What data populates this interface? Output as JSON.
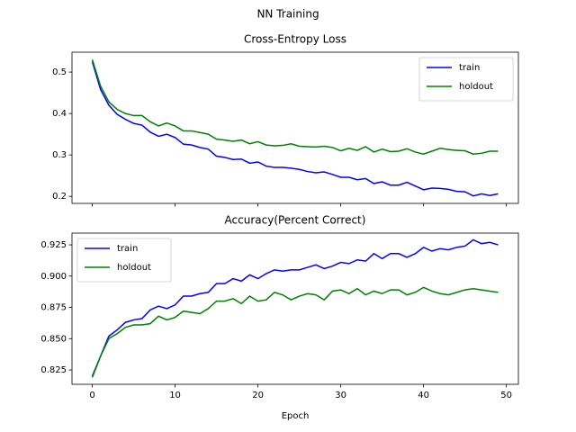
{
  "title": "NN Training",
  "chart_data": [
    {
      "type": "line",
      "title": "Cross-Entropy Loss",
      "x": [
        0,
        1,
        2,
        3,
        4,
        5,
        6,
        7,
        8,
        9,
        10,
        11,
        12,
        13,
        14,
        15,
        16,
        17,
        18,
        19,
        20,
        21,
        22,
        23,
        24,
        25,
        26,
        27,
        28,
        29,
        30,
        31,
        32,
        33,
        34,
        35,
        36,
        37,
        38,
        39,
        40,
        41,
        42,
        43,
        44,
        45,
        46,
        47,
        48,
        49
      ],
      "series": [
        {
          "name": "train",
          "color": "#0000ff",
          "values": [
            0.525,
            0.458,
            0.42,
            0.398,
            0.386,
            0.376,
            0.372,
            0.355,
            0.345,
            0.35,
            0.342,
            0.326,
            0.324,
            0.318,
            0.314,
            0.297,
            0.294,
            0.289,
            0.29,
            0.28,
            0.283,
            0.273,
            0.27,
            0.27,
            0.268,
            0.265,
            0.26,
            0.257,
            0.259,
            0.253,
            0.246,
            0.246,
            0.24,
            0.243,
            0.231,
            0.235,
            0.227,
            0.227,
            0.234,
            0.225,
            0.216,
            0.22,
            0.219,
            0.217,
            0.212,
            0.211,
            0.201,
            0.206,
            0.202,
            0.206
          ]
        },
        {
          "name": "holdout",
          "color": "#008000",
          "values": [
            0.53,
            0.466,
            0.428,
            0.41,
            0.4,
            0.395,
            0.395,
            0.38,
            0.37,
            0.377,
            0.37,
            0.358,
            0.358,
            0.354,
            0.35,
            0.338,
            0.336,
            0.333,
            0.336,
            0.327,
            0.332,
            0.324,
            0.322,
            0.323,
            0.327,
            0.321,
            0.32,
            0.319,
            0.321,
            0.318,
            0.31,
            0.316,
            0.311,
            0.32,
            0.307,
            0.314,
            0.308,
            0.309,
            0.315,
            0.307,
            0.302,
            0.309,
            0.316,
            0.313,
            0.311,
            0.31,
            0.302,
            0.304,
            0.309,
            0.309
          ]
        }
      ],
      "xlim": [
        -2.45,
        51.45
      ],
      "ylim": [
        0.183,
        0.548
      ],
      "yticks": [
        0.2,
        0.3,
        0.4,
        0.5
      ],
      "legend": "upper right"
    },
    {
      "type": "line",
      "title": "Accuracy(Percent Correct)",
      "x_label": "Epoch",
      "x": [
        0,
        1,
        2,
        3,
        4,
        5,
        6,
        7,
        8,
        9,
        10,
        11,
        12,
        13,
        14,
        15,
        16,
        17,
        18,
        19,
        20,
        21,
        22,
        23,
        24,
        25,
        26,
        27,
        28,
        29,
        30,
        31,
        32,
        33,
        34,
        35,
        36,
        37,
        38,
        39,
        40,
        41,
        42,
        43,
        44,
        45,
        46,
        47,
        48,
        49
      ],
      "series": [
        {
          "name": "train",
          "color": "#0000ff",
          "values": [
            0.82,
            0.836,
            0.852,
            0.857,
            0.863,
            0.865,
            0.866,
            0.873,
            0.876,
            0.874,
            0.877,
            0.884,
            0.884,
            0.886,
            0.887,
            0.894,
            0.894,
            0.898,
            0.896,
            0.901,
            0.898,
            0.902,
            0.905,
            0.904,
            0.905,
            0.905,
            0.907,
            0.909,
            0.906,
            0.908,
            0.911,
            0.91,
            0.913,
            0.912,
            0.918,
            0.914,
            0.918,
            0.918,
            0.915,
            0.918,
            0.923,
            0.92,
            0.922,
            0.921,
            0.923,
            0.924,
            0.929,
            0.926,
            0.927,
            0.925
          ]
        },
        {
          "name": "holdout",
          "color": "#008000",
          "values": [
            0.819,
            0.836,
            0.85,
            0.854,
            0.859,
            0.861,
            0.861,
            0.862,
            0.868,
            0.865,
            0.867,
            0.872,
            0.871,
            0.87,
            0.874,
            0.88,
            0.88,
            0.882,
            0.878,
            0.884,
            0.88,
            0.881,
            0.887,
            0.885,
            0.881,
            0.884,
            0.886,
            0.885,
            0.881,
            0.888,
            0.889,
            0.886,
            0.89,
            0.885,
            0.888,
            0.886,
            0.889,
            0.889,
            0.885,
            0.887,
            0.891,
            0.888,
            0.886,
            0.885,
            0.887,
            0.889,
            0.89,
            0.889,
            0.888,
            0.887
          ]
        }
      ],
      "xlim": [
        -2.45,
        51.45
      ],
      "xticks": [
        0,
        10,
        20,
        30,
        40,
        50
      ],
      "ylim": [
        0.8135,
        0.9344
      ],
      "yticks": [
        0.825,
        {
          "value": 0.85,
          "label": "0.850"
        },
        0.875,
        {
          "value": 0.9,
          "label": "0.900"
        },
        0.925
      ],
      "legend": "upper left"
    }
  ]
}
